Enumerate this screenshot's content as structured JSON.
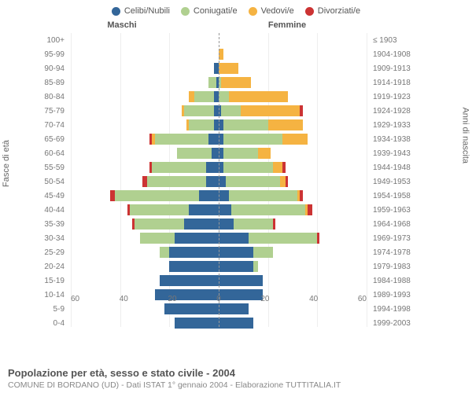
{
  "legend": [
    {
      "label": "Celibi/Nubili",
      "color": "#336699"
    },
    {
      "label": "Coniugati/e",
      "color": "#b0d090"
    },
    {
      "label": "Vedovi/e",
      "color": "#f5b342"
    },
    {
      "label": "Divorziati/e",
      "color": "#cc3333"
    }
  ],
  "header_left": "Maschi",
  "header_right": "Femmine",
  "y_left_label": "Fasce di età",
  "y_right_label": "Anni di nascita",
  "x_ticks": [
    "60",
    "40",
    "20",
    "0",
    "20",
    "40",
    "60"
  ],
  "x_max": 60,
  "footer_title": "Popolazione per età, sesso e stato civile - 2004",
  "footer_subtitle": "COMUNE DI BORDANO (UD) - Dati ISTAT 1° gennaio 2004 - Elaborazione TUTTITALIA.IT",
  "rows": [
    {
      "age": "100+",
      "birth": "≤ 1903",
      "m": [
        0,
        0,
        0,
        0
      ],
      "f": [
        0,
        0,
        0,
        0
      ]
    },
    {
      "age": "95-99",
      "birth": "1904-1908",
      "m": [
        0,
        0,
        0,
        0
      ],
      "f": [
        0,
        0,
        2,
        0
      ]
    },
    {
      "age": "90-94",
      "birth": "1909-1913",
      "m": [
        2,
        0,
        0,
        0
      ],
      "f": [
        0,
        0,
        8,
        0
      ]
    },
    {
      "age": "85-89",
      "birth": "1914-1918",
      "m": [
        1,
        3,
        0,
        0
      ],
      "f": [
        0,
        1,
        12,
        0
      ]
    },
    {
      "age": "80-84",
      "birth": "1919-1923",
      "m": [
        2,
        8,
        2,
        0
      ],
      "f": [
        0,
        4,
        24,
        0
      ]
    },
    {
      "age": "75-79",
      "birth": "1924-1928",
      "m": [
        2,
        12,
        1,
        0
      ],
      "f": [
        1,
        8,
        24,
        1
      ]
    },
    {
      "age": "70-74",
      "birth": "1929-1933",
      "m": [
        2,
        10,
        1,
        0
      ],
      "f": [
        2,
        18,
        14,
        0
      ]
    },
    {
      "age": "65-69",
      "birth": "1934-1938",
      "m": [
        4,
        22,
        1,
        1
      ],
      "f": [
        2,
        24,
        10,
        0
      ]
    },
    {
      "age": "60-64",
      "birth": "1939-1943",
      "m": [
        3,
        14,
        0,
        0
      ],
      "f": [
        2,
        14,
        5,
        0
      ]
    },
    {
      "age": "55-59",
      "birth": "1944-1948",
      "m": [
        5,
        22,
        0,
        1
      ],
      "f": [
        2,
        20,
        4,
        1
      ]
    },
    {
      "age": "50-54",
      "birth": "1949-1953",
      "m": [
        5,
        24,
        0,
        2
      ],
      "f": [
        3,
        22,
        2,
        1
      ]
    },
    {
      "age": "45-49",
      "birth": "1954-1958",
      "m": [
        8,
        34,
        0,
        2
      ],
      "f": [
        4,
        28,
        1,
        1
      ]
    },
    {
      "age": "40-44",
      "birth": "1959-1963",
      "m": [
        12,
        24,
        0,
        1
      ],
      "f": [
        5,
        30,
        1,
        2
      ]
    },
    {
      "age": "35-39",
      "birth": "1964-1968",
      "m": [
        14,
        20,
        0,
        1
      ],
      "f": [
        6,
        16,
        0,
        1
      ]
    },
    {
      "age": "30-34",
      "birth": "1969-1973",
      "m": [
        18,
        14,
        0,
        0
      ],
      "f": [
        12,
        28,
        0,
        1
      ]
    },
    {
      "age": "25-29",
      "birth": "1974-1978",
      "m": [
        20,
        4,
        0,
        0
      ],
      "f": [
        14,
        8,
        0,
        0
      ]
    },
    {
      "age": "20-24",
      "birth": "1979-1983",
      "m": [
        20,
        0,
        0,
        0
      ],
      "f": [
        14,
        2,
        0,
        0
      ]
    },
    {
      "age": "15-19",
      "birth": "1984-1988",
      "m": [
        24,
        0,
        0,
        0
      ],
      "f": [
        18,
        0,
        0,
        0
      ]
    },
    {
      "age": "10-14",
      "birth": "1989-1993",
      "m": [
        26,
        0,
        0,
        0
      ],
      "f": [
        18,
        0,
        0,
        0
      ]
    },
    {
      "age": "5-9",
      "birth": "1994-1998",
      "m": [
        22,
        0,
        0,
        0
      ],
      "f": [
        12,
        0,
        0,
        0
      ]
    },
    {
      "age": "0-4",
      "birth": "1999-2003",
      "m": [
        18,
        0,
        0,
        0
      ],
      "f": [
        14,
        0,
        0,
        0
      ]
    }
  ],
  "colors": {
    "single": "#336699",
    "married": "#b0d090",
    "widowed": "#f5b342",
    "divorced": "#cc3333",
    "grid": "#eeeeee",
    "center": "#999999"
  }
}
